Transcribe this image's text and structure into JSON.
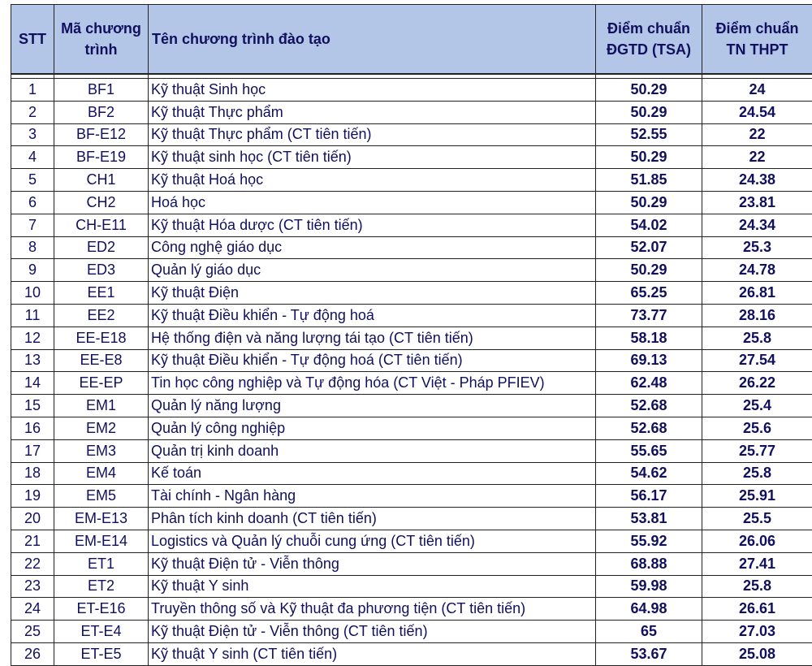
{
  "header": {
    "stt": "STT",
    "code": "Mã chương trình",
    "name": "Tên chương trình đào tạo",
    "tsa": "Điểm chuẩn ĐGTD (TSA)",
    "thpt": "Điểm chuẩn TN THPT"
  },
  "rows": [
    {
      "stt": "1",
      "code": "BF1",
      "name": "Kỹ thuật Sinh học",
      "tsa": "50.29",
      "thpt": "24"
    },
    {
      "stt": "2",
      "code": "BF2",
      "name": "Kỹ thuật Thực phẩm",
      "tsa": "50.29",
      "thpt": "24.54"
    },
    {
      "stt": "3",
      "code": "BF-E12",
      "name": "Kỹ thuật Thực phẩm (CT tiên tiến)",
      "tsa": "52.55",
      "thpt": "22"
    },
    {
      "stt": "4",
      "code": "BF-E19",
      "name": "Kỹ thuật sinh học (CT tiên tiến)",
      "tsa": "50.29",
      "thpt": "22"
    },
    {
      "stt": "5",
      "code": "CH1",
      "name": "Kỹ thuật Hoá học",
      "tsa": "51.85",
      "thpt": "24.38"
    },
    {
      "stt": "6",
      "code": "CH2",
      "name": "Hoá học",
      "tsa": "50.29",
      "thpt": "23.81"
    },
    {
      "stt": "7",
      "code": "CH-E11",
      "name": "Kỹ thuật Hóa dược (CT tiên tiến)",
      "tsa": "54.02",
      "thpt": "24.34"
    },
    {
      "stt": "8",
      "code": "ED2",
      "name": "Công nghệ giáo dục",
      "tsa": "52.07",
      "thpt": "25.3"
    },
    {
      "stt": "9",
      "code": "ED3",
      "name": "Quản lý giáo dục",
      "tsa": "50.29",
      "thpt": "24.78"
    },
    {
      "stt": "10",
      "code": "EE1",
      "name": "Kỹ thuật Điện",
      "tsa": "65.25",
      "thpt": "26.81"
    },
    {
      "stt": "11",
      "code": "EE2",
      "name": "Kỹ thuật Điều khiển - Tự động hoá",
      "tsa": "73.77",
      "thpt": "28.16"
    },
    {
      "stt": "12",
      "code": "EE-E18",
      "name": "Hệ thống điện và năng lượng tái tạo (CT tiên tiến)",
      "tsa": "58.18",
      "thpt": "25.8"
    },
    {
      "stt": "13",
      "code": "EE-E8",
      "name": "Kỹ thuật Điều khiển - Tự động hoá (CT tiên tiến)",
      "tsa": "69.13",
      "thpt": "27.54"
    },
    {
      "stt": "14",
      "code": "EE-EP",
      "name": "Tin học công nghiệp và Tự động hóa (CT Việt - Pháp PFIEV)",
      "tsa": "62.48",
      "thpt": "26.22"
    },
    {
      "stt": "15",
      "code": "EM1",
      "name": "Quản lý năng lượng",
      "tsa": "52.68",
      "thpt": "25.4"
    },
    {
      "stt": "16",
      "code": "EM2",
      "name": "Quản lý công nghiệp",
      "tsa": "52.68",
      "thpt": "25.6"
    },
    {
      "stt": "17",
      "code": "EM3",
      "name": "Quản trị kinh doanh",
      "tsa": "55.65",
      "thpt": "25.77"
    },
    {
      "stt": "18",
      "code": "EM4",
      "name": "Kế toán",
      "tsa": "54.62",
      "thpt": "25.8"
    },
    {
      "stt": "19",
      "code": "EM5",
      "name": "Tài chính - Ngân hàng",
      "tsa": "56.17",
      "thpt": "25.91"
    },
    {
      "stt": "20",
      "code": "EM-E13",
      "name": "Phân tích kinh doanh (CT tiên tiến)",
      "tsa": "53.81",
      "thpt": "25.5"
    },
    {
      "stt": "21",
      "code": "EM-E14",
      "name": "Logistics và Quản lý chuỗi cung ứng (CT tiên tiến)",
      "tsa": "55.92",
      "thpt": "26.06"
    },
    {
      "stt": "22",
      "code": "ET1",
      "name": "Kỹ thuật Điện tử - Viễn thông",
      "tsa": "68.88",
      "thpt": "27.41"
    },
    {
      "stt": "23",
      "code": "ET2",
      "name": "Kỹ thuật Y sinh",
      "tsa": "59.98",
      "thpt": "25.8"
    },
    {
      "stt": "24",
      "code": "ET-E16",
      "name": "Truyền thông số và Kỹ thuật đa phương tiện (CT tiên tiến)",
      "tsa": "64.98",
      "thpt": "26.61"
    },
    {
      "stt": "25",
      "code": "ET-E4",
      "name": "Kỹ thuật Điện tử - Viễn thông (CT tiên tiến)",
      "tsa": "65",
      "thpt": "27.03"
    },
    {
      "stt": "26",
      "code": "ET-E5",
      "name": "Kỹ thuật Y sinh (CT tiên tiến)",
      "tsa": "53.67",
      "thpt": "25.08"
    }
  ]
}
